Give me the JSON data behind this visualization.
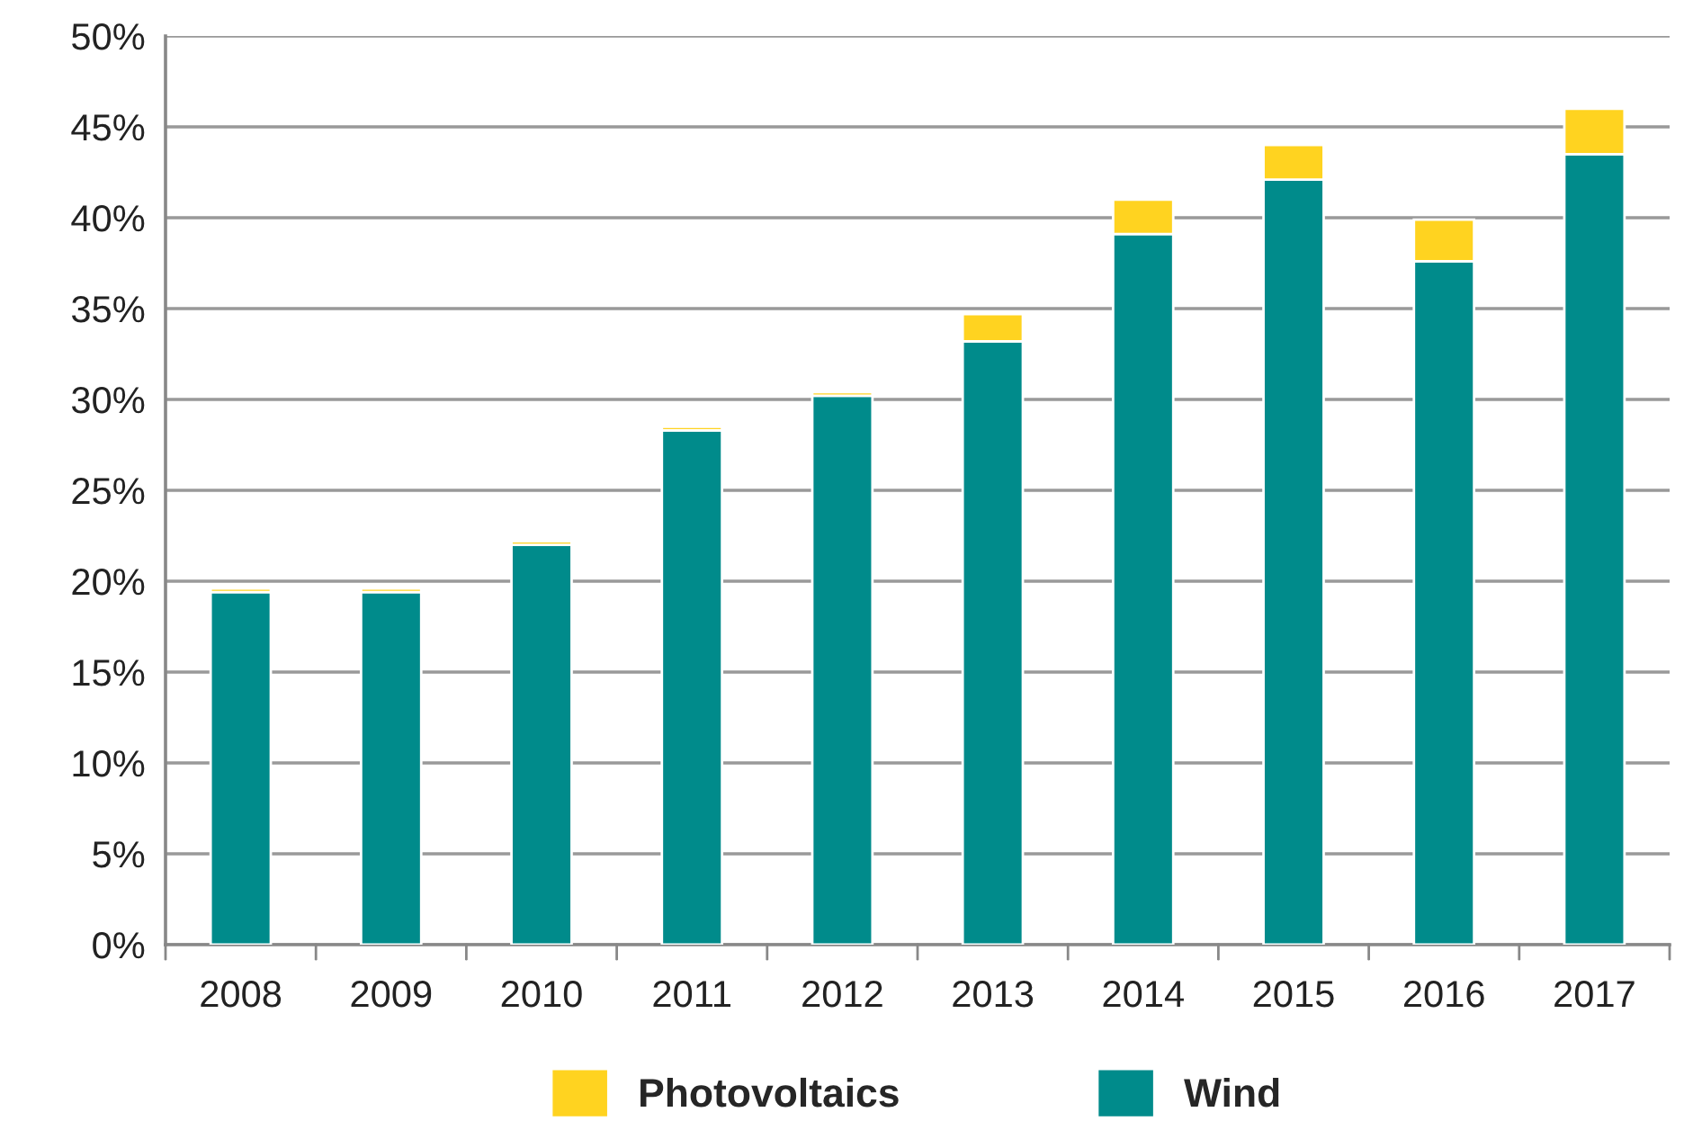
{
  "chart_data": {
    "type": "bar",
    "stacked": true,
    "categories": [
      "2008",
      "2009",
      "2010",
      "2011",
      "2012",
      "2013",
      "2014",
      "2015",
      "2016",
      "2017"
    ],
    "series": [
      {
        "name": "Wind",
        "color": "#008b8b",
        "values": [
          19.4,
          19.4,
          22.0,
          28.3,
          30.2,
          33.2,
          39.1,
          42.1,
          37.6,
          43.5
        ]
      },
      {
        "name": "Photovoltaics",
        "color": "#ffd320",
        "values": [
          0.2,
          0.2,
          0.2,
          0.2,
          0.2,
          1.5,
          1.9,
          1.9,
          2.3,
          2.5
        ]
      }
    ],
    "ylim": [
      0,
      50
    ],
    "yticks": [
      {
        "value": 0,
        "label": "0%"
      },
      {
        "value": 5,
        "label": "5%"
      },
      {
        "value": 10,
        "label": "10%"
      },
      {
        "value": 15,
        "label": "15%"
      },
      {
        "value": 20,
        "label": "20%"
      },
      {
        "value": 25,
        "label": "25%"
      },
      {
        "value": 30,
        "label": "30%"
      },
      {
        "value": 35,
        "label": "35%"
      },
      {
        "value": 40,
        "label": "40%"
      },
      {
        "value": 45,
        "label": "45%"
      },
      {
        "value": 50,
        "label": "50%"
      }
    ],
    "grid": "y",
    "legend": "bottom"
  }
}
